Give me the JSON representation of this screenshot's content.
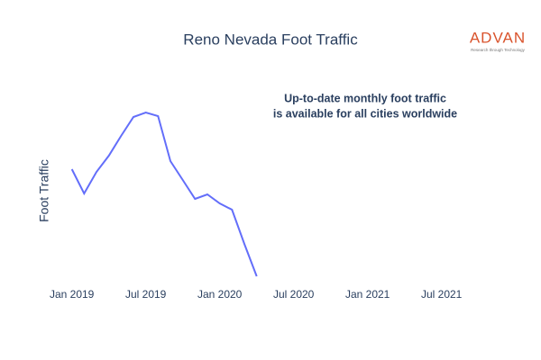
{
  "chart_data": {
    "type": "line",
    "title": "Reno Nevada Foot Traffic",
    "y_label": "Foot Traffic",
    "annotation": [
      "Up-to-date monthly foot traffic",
      "is available for all cities worldwide"
    ],
    "logo": {
      "name": "ADVAN",
      "tagline": "Research through Technology"
    },
    "x": [
      "2019-01",
      "2019-02",
      "2019-03",
      "2019-04",
      "2019-05",
      "2019-06",
      "2019-07",
      "2019-08",
      "2019-09",
      "2019-10",
      "2019-11",
      "2019-12",
      "2020-01",
      "2020-02",
      "2020-03",
      "2020-04"
    ],
    "series": [
      {
        "name": "Foot Traffic",
        "color": "#636efa",
        "values": [
          61,
          47.5,
          59.5,
          68.5,
          79.5,
          90,
          92.5,
          90.5,
          65.5,
          55,
          44.5,
          47,
          42,
          38.5,
          19.5,
          1.5
        ]
      }
    ],
    "xlim": [
      "2018-12",
      "2021-09"
    ],
    "xticks": [
      {
        "value": "2019-01",
        "label": "Jan 2019"
      },
      {
        "value": "2019-07",
        "label": "Jul 2019"
      },
      {
        "value": "2020-01",
        "label": "Jan 2020"
      },
      {
        "value": "2020-07",
        "label": "Jul 2020"
      },
      {
        "value": "2021-01",
        "label": "Jan 2021"
      },
      {
        "value": "2021-07",
        "label": "Jul 2021"
      }
    ],
    "ylim": [
      0,
      100
    ]
  }
}
